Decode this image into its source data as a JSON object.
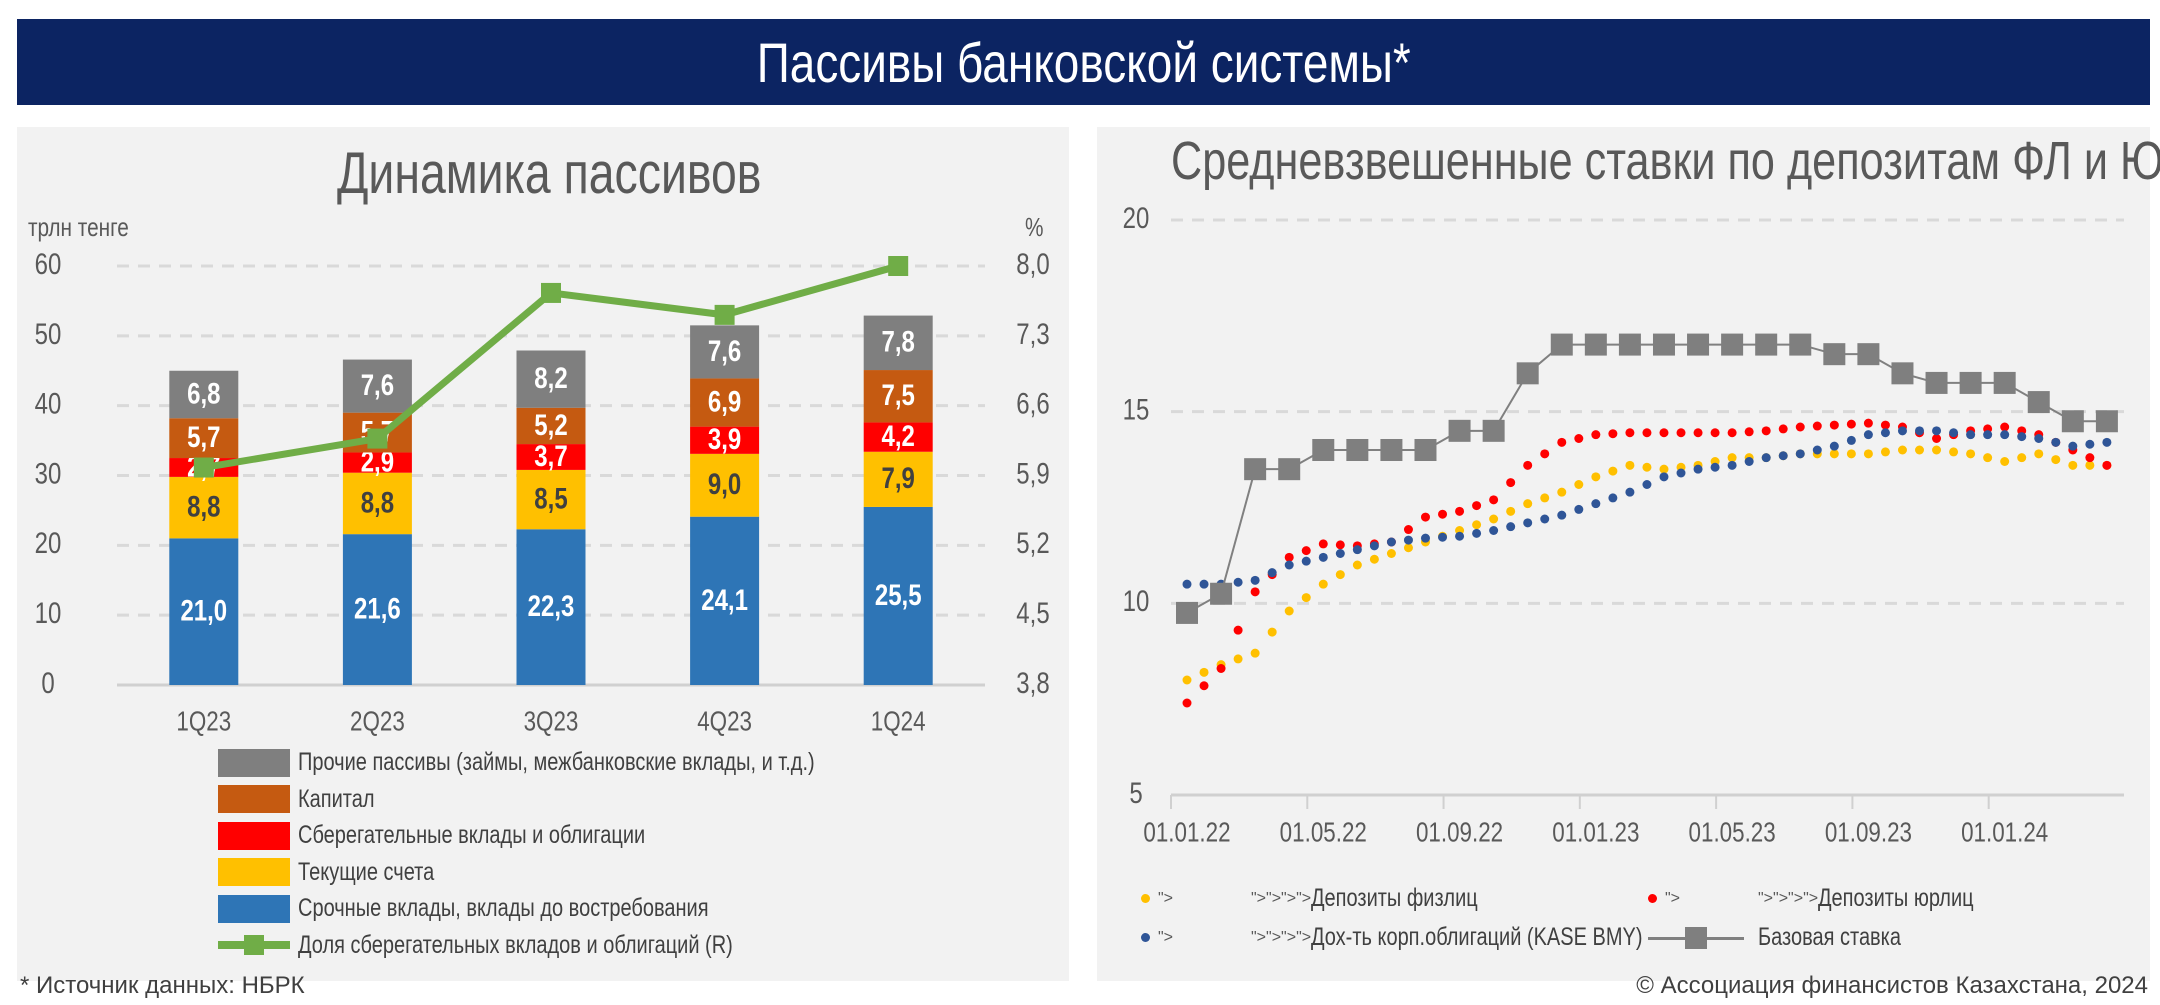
{
  "header": {
    "title": "Пассивы банковской системы*"
  },
  "footer": {
    "source": "* Источник данных: НБРК",
    "copyright": "© Ассоциация финансистов Казахстана, 2024"
  },
  "colors": {
    "header_bg": "#0c2462",
    "panel_bg": "#f2f2f2"
  },
  "chart_data": [
    {
      "type": "bar",
      "stacked": true,
      "title": "Динамика пассивов",
      "ylabel": "трлн тенге",
      "y2label": "%",
      "ylim": [
        0,
        60
      ],
      "yticks": [
        "0",
        "10",
        "20",
        "30",
        "40",
        "50",
        "60"
      ],
      "y2lim": [
        3.8,
        8.0
      ],
      "y2ticks": [
        "3,8",
        "4,5",
        "5,2",
        "5,9",
        "6,6",
        "7,3",
        "8,0"
      ],
      "grid": true,
      "legend_position": "bottom",
      "categories": [
        "1Q23",
        "2Q23",
        "3Q23",
        "4Q23",
        "1Q24"
      ],
      "series": [
        {
          "name": "Срочные вклады, вклады до востребования",
          "color": "#2e75b6",
          "values": [
            21.0,
            21.6,
            22.3,
            24.1,
            25.5
          ],
          "labels": [
            "21,0",
            "21,6",
            "22,3",
            "24,1",
            "25,5"
          ]
        },
        {
          "name": "Текущие счета",
          "color": "#ffc000",
          "values": [
            8.8,
            8.8,
            8.5,
            9.0,
            7.9
          ],
          "labels": [
            "8,8",
            "8,8",
            "8,5",
            "9,0",
            "7,9"
          ]
        },
        {
          "name": "Сберегательные вклады и облигации",
          "color": "#ff0000",
          "values": [
            2.7,
            2.9,
            3.7,
            3.9,
            4.2
          ],
          "labels": [
            "2,7",
            "2,9",
            "3,7",
            "3,9",
            "4,2"
          ]
        },
        {
          "name": "Капитал",
          "color": "#c55a11",
          "values": [
            5.7,
            5.7,
            5.2,
            6.9,
            7.5
          ],
          "labels": [
            "5,7",
            "5,7",
            "5,2",
            "6,9",
            "7,5"
          ]
        },
        {
          "name": "Прочие пассивы (займы, межбанковские вклады, и т.д.)",
          "color": "#7f7f7f",
          "values": [
            6.8,
            7.6,
            8.2,
            7.6,
            7.8
          ],
          "labels": [
            "6,8",
            "7,6",
            "8,2",
            "7,6",
            "7,8"
          ]
        }
      ],
      "line_series": {
        "name": "Доля сберегательных вкладов и облигаций (R)",
        "color": "#70ad47",
        "axis": "right",
        "values": [
          5.98,
          6.27,
          7.73,
          7.51,
          8.0
        ]
      },
      "legend_order": [
        4,
        3,
        2,
        1,
        0
      ]
    },
    {
      "type": "line",
      "title": "Средневзвешенные ставки по депозитам ФЛ и ЮЛ",
      "ylim": [
        5,
        20
      ],
      "yticks": [
        "5",
        "10",
        "15",
        "20"
      ],
      "xticks": [
        "01.01.22",
        "01.05.22",
        "01.09.22",
        "01.01.23",
        "01.05.23",
        "01.09.23",
        "01.01.24"
      ],
      "x": [
        "01.22",
        "02.22",
        "03.22",
        "04.22",
        "05.22",
        "06.22",
        "07.22",
        "08.22",
        "09.22",
        "10.22",
        "11.22",
        "12.22",
        "01.23",
        "02.23",
        "03.23",
        "04.23",
        "05.23",
        "06.23",
        "07.23",
        "08.23",
        "09.23",
        "10.23",
        "11.23",
        "12.23",
        "01.24",
        "02.24",
        "03.24",
        "04.24"
      ],
      "grid": true,
      "legend_position": "bottom",
      "series": [
        {
          "name": "Депозиты физлиц",
          "color": "#ffc000",
          "style": "dotted",
          "values": [
            8.0,
            8.4,
            8.7,
            9.8,
            10.5,
            11.0,
            11.3,
            11.6,
            11.9,
            12.2,
            12.6,
            12.9,
            13.3,
            13.6,
            13.5,
            13.6,
            13.8,
            13.8,
            13.9,
            13.9,
            13.9,
            14.0,
            14.0,
            13.9,
            13.7,
            13.9,
            13.6,
            13.6
          ]
        },
        {
          "name": "Депозиты юрлиц",
          "color": "#ff0000",
          "style": "dotted",
          "values": [
            7.4,
            8.3,
            10.3,
            11.2,
            11.55,
            11.5,
            11.6,
            12.25,
            12.4,
            12.7,
            13.6,
            14.2,
            14.4,
            14.45,
            14.45,
            14.45,
            14.45,
            14.5,
            14.6,
            14.65,
            14.7,
            14.6,
            14.3,
            14.5,
            14.6,
            14.4,
            14.0,
            13.6
          ]
        },
        {
          "name": "Дох-ть корп.облигаций (KASE BMY)",
          "color": "#2f5597",
          "style": "dotted",
          "values": [
            10.5,
            10.5,
            10.6,
            11.0,
            11.2,
            11.4,
            11.6,
            11.7,
            11.75,
            11.9,
            12.1,
            12.3,
            12.6,
            12.9,
            13.3,
            13.5,
            13.6,
            13.8,
            13.9,
            14.1,
            14.4,
            14.5,
            14.5,
            14.4,
            14.4,
            14.3,
            14.1,
            14.2
          ]
        },
        {
          "name": "Базовая ставка",
          "color": "#7f7f7f",
          "style": "line-square",
          "values": [
            9.75,
            10.25,
            13.5,
            13.5,
            14.0,
            14.0,
            14.0,
            14.0,
            14.5,
            14.5,
            16.0,
            16.75,
            16.75,
            16.75,
            16.75,
            16.75,
            16.75,
            16.75,
            16.75,
            16.5,
            16.5,
            16.0,
            15.75,
            15.75,
            15.75,
            15.25,
            14.75,
            14.75
          ]
        }
      ]
    }
  ]
}
